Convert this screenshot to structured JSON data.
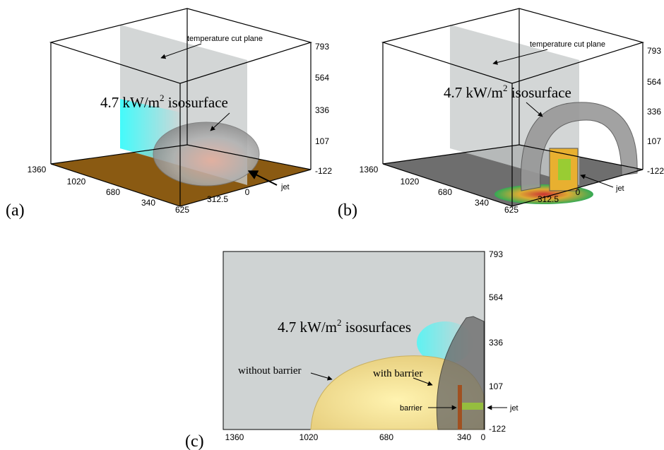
{
  "panels": [
    {
      "label": "(a)",
      "z_ticks": [
        "793",
        "564",
        "336",
        "107",
        "-122"
      ],
      "x_ticks": [
        "1360",
        "1020",
        "680",
        "340",
        "625"
      ],
      "y_ticks": [
        "312.5",
        "0"
      ],
      "cut_plane": "temperature cut plane",
      "iso": [
        "4.7 kW/m",
        "2",
        " isosurface"
      ],
      "jet": "jet"
    },
    {
      "label": "(b)",
      "z_ticks": [
        "793",
        "564",
        "336",
        "107",
        "-122"
      ],
      "x_ticks": [
        "1360",
        "1020",
        "680",
        "340",
        "625"
      ],
      "y_ticks": [
        "312.5",
        "0"
      ],
      "cut_plane": "temperature cut plane",
      "iso": [
        "4.7 kW/m",
        "2",
        " isosurface"
      ],
      "jet": "jet"
    },
    {
      "label": "(c)",
      "z_ticks": [
        "793",
        "564",
        "336",
        "107",
        "-122"
      ],
      "x_ticks": [
        "1360",
        "1020",
        "680",
        "340",
        "0"
      ],
      "iso": [
        "4.7 kW/m",
        "2",
        " isosurfaces"
      ],
      "without": "without barrier",
      "with": "with barrier",
      "barrier": "barrier",
      "jet": "jet"
    }
  ]
}
